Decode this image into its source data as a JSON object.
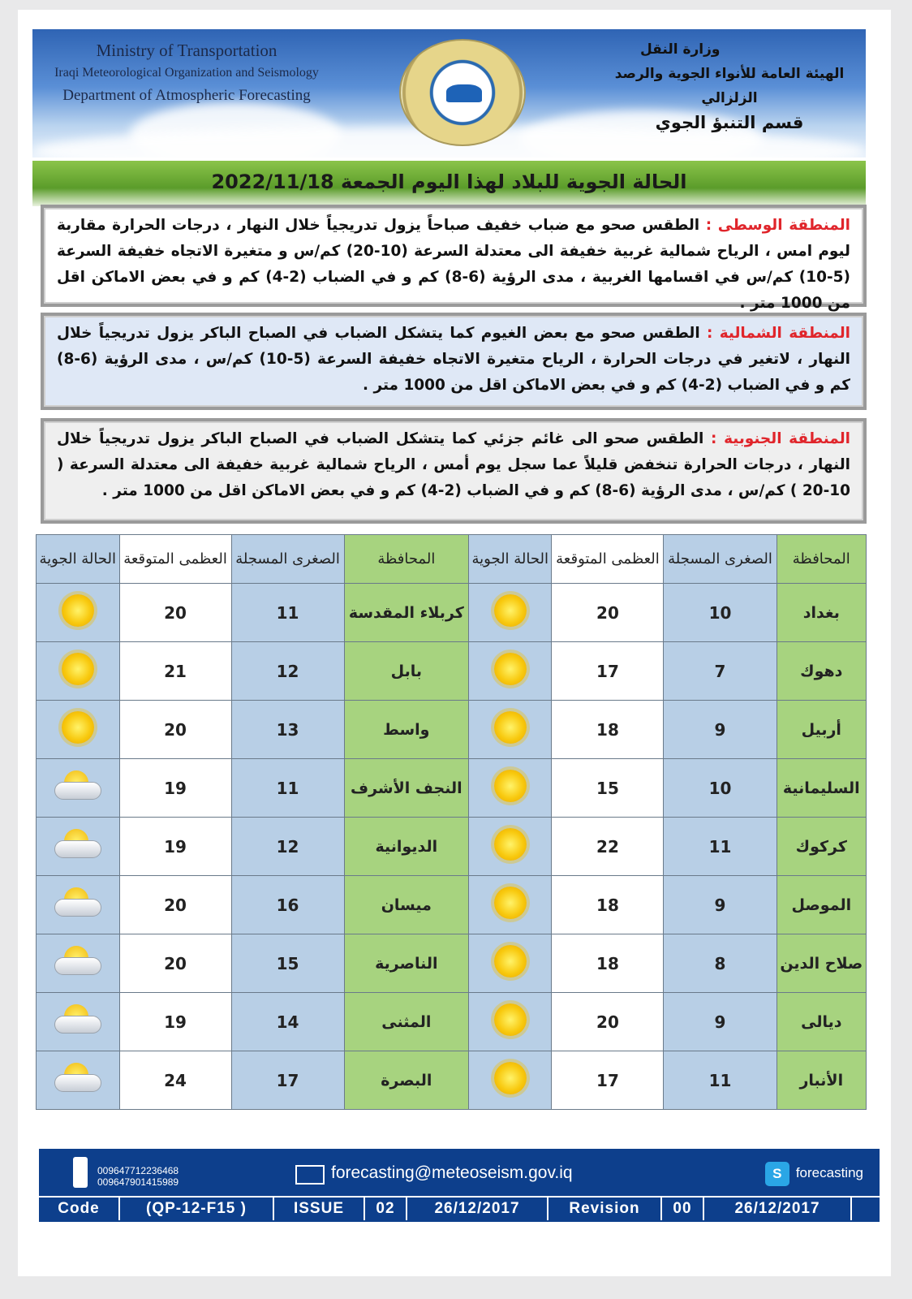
{
  "header": {
    "en": [
      "Ministry of Transportation",
      "Iraqi Meteorological Organization and Seismology",
      "Department of Atmospheric Forecasting"
    ],
    "ar": [
      "وزارة النقل",
      "الهيئة العامة للأنواء الجوية والرصد الزلزالي",
      "قسم التنبؤ الجوي"
    ]
  },
  "title": "الحالة الجوية للبلاد لهذا اليوم الجمعة  2022/11/18",
  "regions": [
    {
      "name": "المنطقة الوسطى :",
      "text": " الطقس صحو مع ضباب خفيف صباحاً يزول تدريجياً خلال النهار ، درجات الحرارة مقاربة ليوم امس ، الرياح شمالية غربية خفيفة الى معتدلة السرعة (10-20) كم/س و متغيرة الاتجاه خفيفة السرعة (5-10) كم/س في اقسامها الغربية ، مدى الرؤية (6-8) كم و في الضباب (2-4) كم و في بعض الاماكن اقل من 1000 متر ."
    },
    {
      "name": "المنطقة الشمالية :",
      "text": " الطقس صحو مع بعض الغيوم كما يتشكل الضباب في الصباح الباكر يزول تدريجياً خلال النهار ، لاتغير في درجات الحرارة ، الرياح متغيرة الاتجاه خفيفة السرعة (5-10) كم/س ، مدى الرؤية (6-8) كم و في الضباب (2-4) كم و في بعض الاماكن اقل من 1000 متر ."
    },
    {
      "name": "المنطقة الجنوبية :",
      "text": " الطقس صحو الى غائم جزئي كما يتشكل الضباب في الصباح الباكر يزول تدريجياً خلال النهار ، درجات الحرارة تنخفض قليلاً عما سجل يوم أمس ، الرياح شمالية غربية خفيفة الى معتدلة السرعة ( 10-20 ) كم/س ، مدى الرؤية (6-8) كم و في الضباب (2-4) كم و في بعض الاماكن اقل من 1000 متر ."
    }
  ],
  "table": {
    "headers": [
      "المحافظة",
      "الصغرى المسجلة",
      "العظمى المتوقعة",
      "الحالة الجوية",
      "المحافظة",
      "الصغرى المسجلة",
      "العظمى المتوقعة",
      "الحالة الجوية"
    ],
    "rows": [
      {
        "a": [
          "بغداد",
          "10",
          "20",
          "sunny"
        ],
        "b": [
          "كربلاء المقدسة",
          "11",
          "20",
          "sunny"
        ]
      },
      {
        "a": [
          "دهوك",
          "7",
          "17",
          "sunny"
        ],
        "b": [
          "بابل",
          "12",
          "21",
          "sunny"
        ]
      },
      {
        "a": [
          "أربيل",
          "9",
          "18",
          "sunny"
        ],
        "b": [
          "واسط",
          "13",
          "20",
          "sunny"
        ]
      },
      {
        "a": [
          "السليمانية",
          "10",
          "15",
          "sunny"
        ],
        "b": [
          "النجف الأشرف",
          "11",
          "19",
          "partly-cloudy"
        ]
      },
      {
        "a": [
          "كركوك",
          "11",
          "22",
          "sunny"
        ],
        "b": [
          "الديوانية",
          "12",
          "19",
          "partly-cloudy"
        ]
      },
      {
        "a": [
          "الموصل",
          "9",
          "18",
          "sunny"
        ],
        "b": [
          "ميسان",
          "16",
          "20",
          "partly-cloudy"
        ]
      },
      {
        "a": [
          "صلاح الدين",
          "8",
          "18",
          "sunny"
        ],
        "b": [
          "الناصرية",
          "15",
          "20",
          "partly-cloudy"
        ]
      },
      {
        "a": [
          "ديالى",
          "9",
          "20",
          "sunny"
        ],
        "b": [
          "المثنى",
          "14",
          "19",
          "partly-cloudy"
        ]
      },
      {
        "a": [
          "الأنبار",
          "11",
          "17",
          "sunny"
        ],
        "b": [
          "البصرة",
          "17",
          "24",
          "partly-cloudy"
        ]
      }
    ]
  },
  "footer": {
    "phones": [
      "009647712236468",
      "009647901415989"
    ],
    "email": "forecasting@meteoseism.gov.iq",
    "skype": "forecasting",
    "code_row": [
      "Code",
      "(QP-12-F15 )",
      "ISSUE",
      "02",
      "26/12/2017",
      "Revision",
      "00",
      "26/12/2017"
    ]
  },
  "colors": {
    "green": "#a7d37f",
    "blue": "#b8cfe6",
    "footer": "#0d3f8c",
    "region_title": "#e0252b"
  }
}
